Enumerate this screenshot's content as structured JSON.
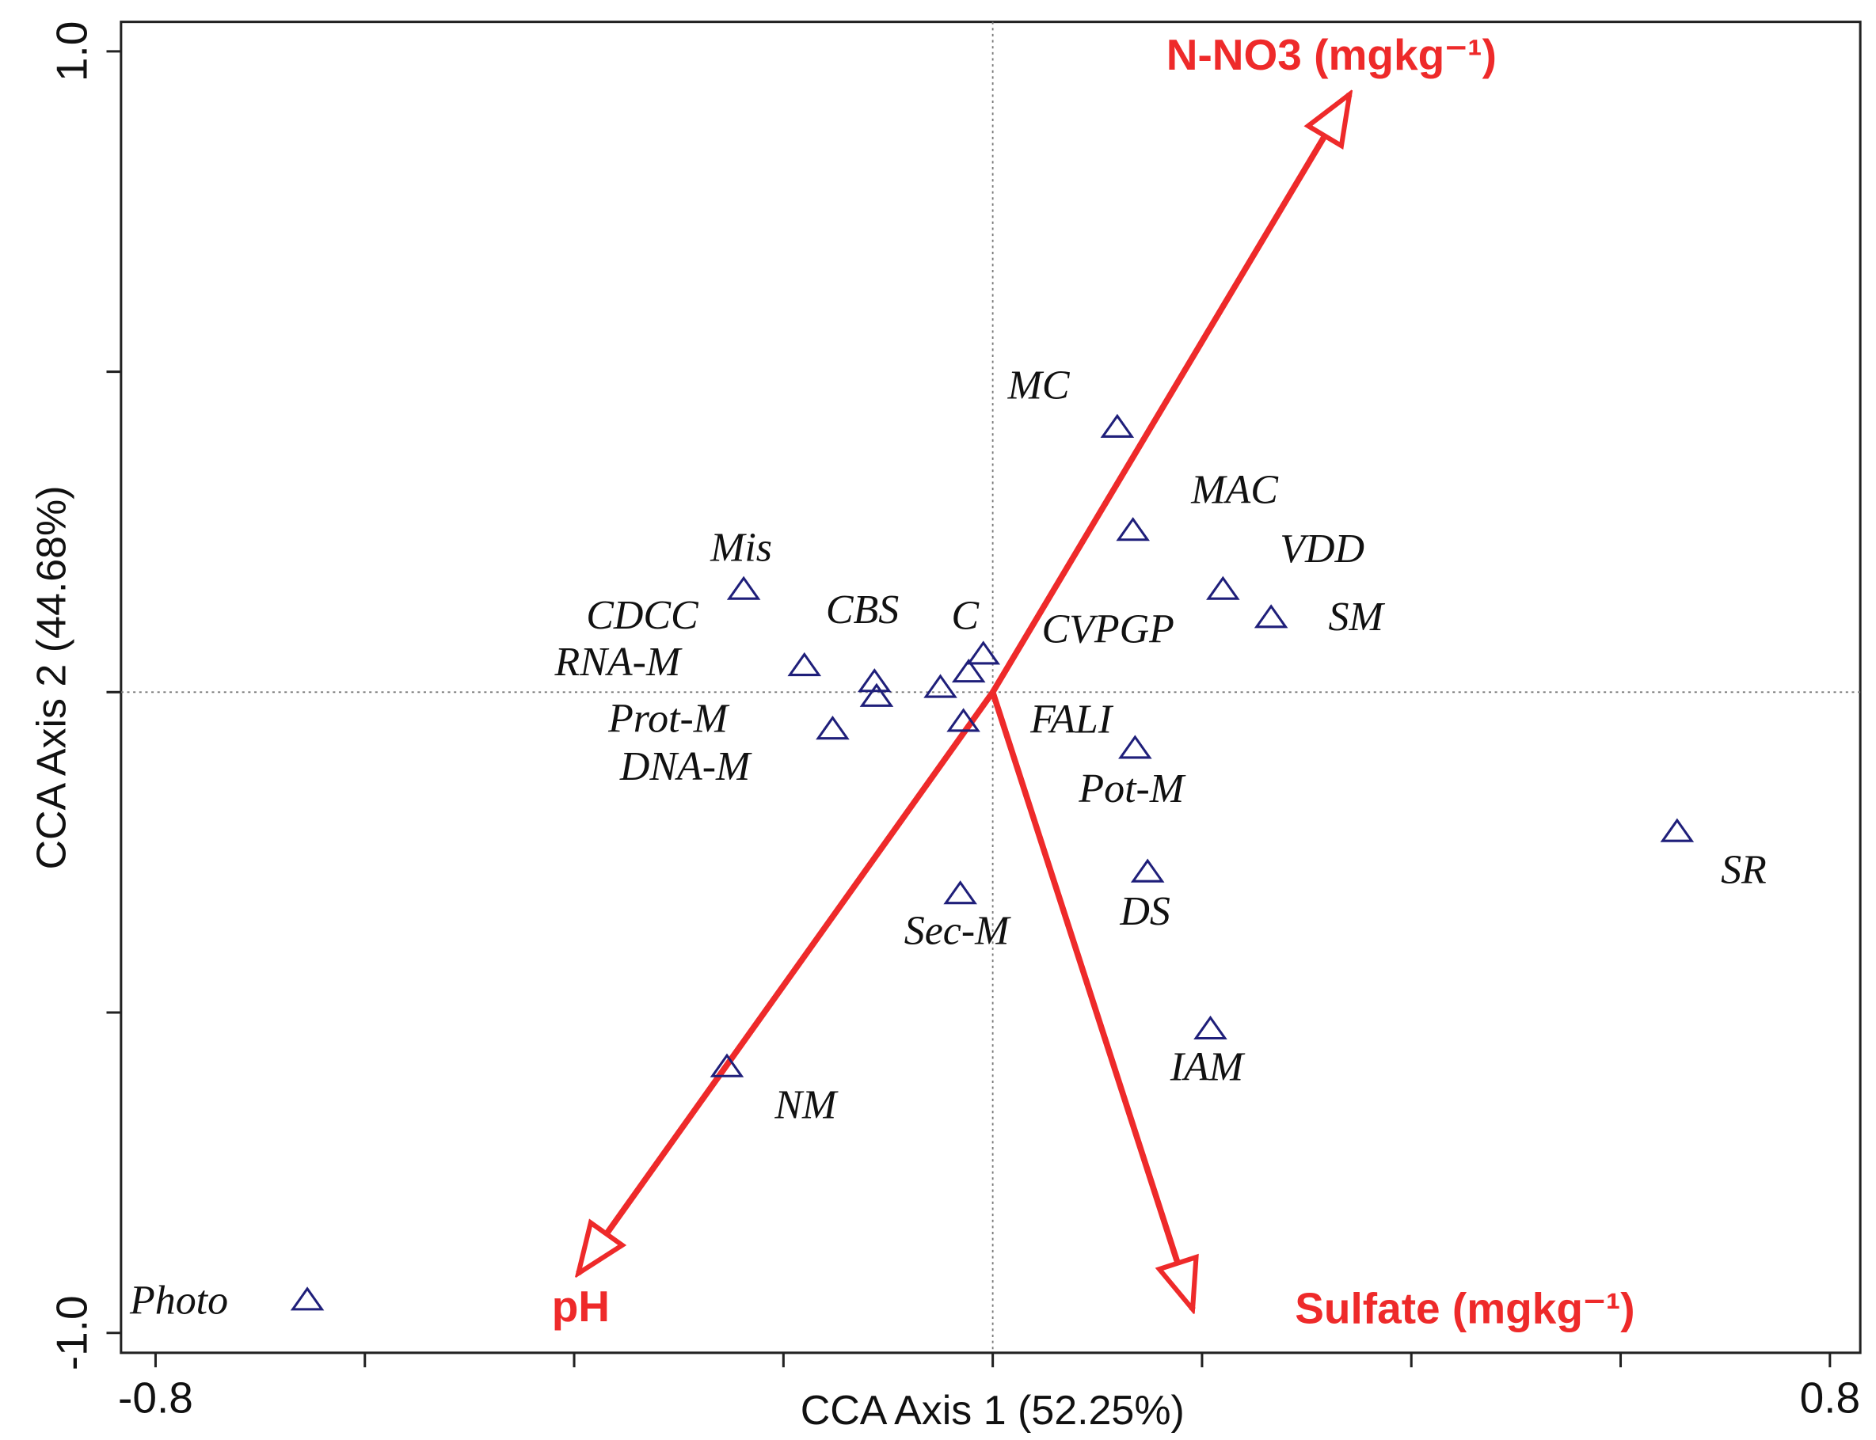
{
  "chart_data": {
    "type": "biplot",
    "x_label": "CCA Axis 1 (52.25%)",
    "y_label": "CCA Axis 2 (44.68%)",
    "xlim": [
      -0.833,
      0.829
    ],
    "ylim": [
      -1.031,
      1.046
    ],
    "xticks": [
      -0.8,
      0.8
    ],
    "yticks": [
      {
        "value": 1,
        "label": "1.0"
      },
      {
        "value": -1,
        "label": "-1.0"
      }
    ],
    "xminor_ticks": [
      -0.6,
      -0.4,
      -0.2,
      0,
      0.2,
      0.4,
      0.6
    ],
    "yminor_ticks": [
      0.5,
      0,
      -0.5
    ],
    "zero_lines": true,
    "point_color": "#1f1f7a",
    "arrow_color": "#ee2a2a",
    "points": [
      {
        "label": "MC",
        "x": 0.119,
        "y": 0.414
      },
      {
        "label": "MAC",
        "x": 0.134,
        "y": 0.253
      },
      {
        "label": "VDD",
        "x": 0.22,
        "y": 0.161
      },
      {
        "label": "SM",
        "x": 0.266,
        "y": 0.117
      },
      {
        "label": "Mis",
        "x": -0.238,
        "y": 0.161
      },
      {
        "label": "CDCC",
        "x": -0.18,
        "y": 0.042
      },
      {
        "label": "CBS",
        "x": -0.113,
        "y": 0.017
      },
      {
        "label": "RNA-M",
        "x": -0.111,
        "y": -0.006
      },
      {
        "label": "C",
        "x": -0.023,
        "y": 0.032
      },
      {
        "label": "CVPGP",
        "x": -0.009,
        "y": 0.06
      },
      {
        "label": "DNA-M",
        "x": -0.05,
        "y": 0.008
      },
      {
        "label": "Prot-M",
        "x": -0.153,
        "y": -0.057
      },
      {
        "label": "FALI",
        "x": -0.028,
        "y": -0.045
      },
      {
        "label": "Pot-M",
        "x": 0.136,
        "y": -0.087
      },
      {
        "label": "DS",
        "x": 0.148,
        "y": -0.28
      },
      {
        "label": "Sec-M",
        "x": -0.031,
        "y": -0.314
      },
      {
        "label": "IAM",
        "x": 0.208,
        "y": -0.525
      },
      {
        "label": "NM",
        "x": -0.254,
        "y": -0.584
      },
      {
        "label": "SR",
        "x": 0.654,
        "y": -0.217
      },
      {
        "label": "Photo",
        "x": -0.655,
        "y": -0.948
      }
    ],
    "arrows": [
      {
        "label": "N-NO3 (mgkg⁻¹)",
        "x": 0.341,
        "y": 0.933
      },
      {
        "label": "pH",
        "x": -0.396,
        "y": -0.907
      },
      {
        "label": "Sulfate (mgkg⁻¹)",
        "x": 0.191,
        "y": -0.963
      }
    ]
  }
}
